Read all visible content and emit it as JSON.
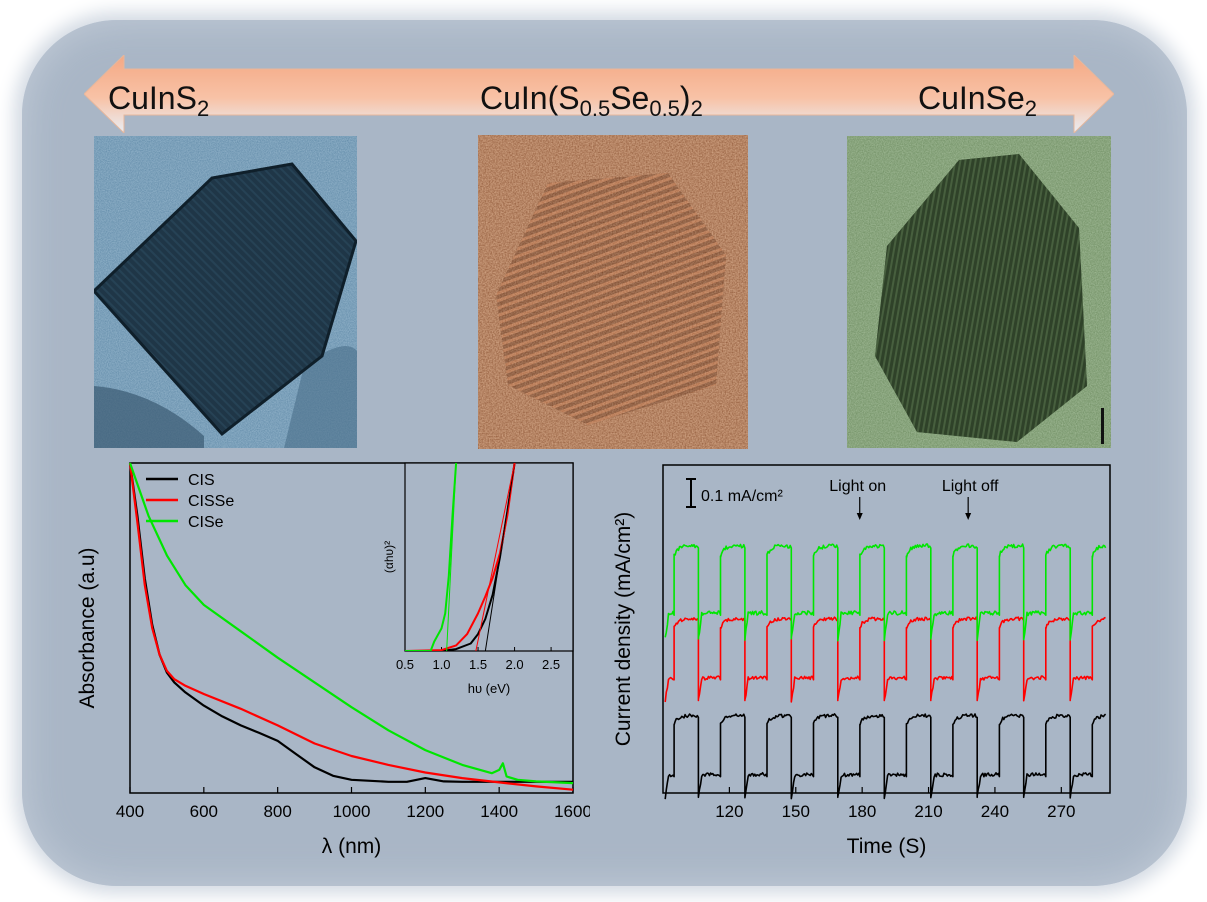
{
  "labels": {
    "cis": {
      "base": "CuInS",
      "sub": "2"
    },
    "cisse": {
      "pre": "CuIn(S",
      "sub1": "0.5",
      "mid": "Se",
      "sub2": "0.5",
      "post": ")",
      "sub3": "2"
    },
    "cise": {
      "base": "CuInSe",
      "sub": "2"
    }
  },
  "colors": {
    "arrow_top": "#f4a884",
    "arrow_bottom": "#e9eef5",
    "cis": "#000000",
    "cisse": "#ff0000",
    "cise": "#00e600"
  },
  "chart_data": [
    {
      "type": "line",
      "title": "",
      "xlabel": "λ (nm)",
      "ylabel": "Absorbance (a.u)",
      "xlim": [
        400,
        1600
      ],
      "ylim": [
        0,
        1
      ],
      "xticks": [
        400,
        600,
        800,
        1000,
        1200,
        1400,
        1600
      ],
      "legend": "top-left",
      "series": [
        {
          "name": "CIS",
          "color": "#000000",
          "x": [
            400,
            420,
            440,
            460,
            480,
            500,
            520,
            550,
            600,
            650,
            700,
            750,
            800,
            850,
            900,
            950,
            1000,
            1100,
            1150,
            1200,
            1250,
            1300,
            1400,
            1450,
            1500,
            1600
          ],
          "y": [
            1.0,
            0.84,
            0.65,
            0.51,
            0.42,
            0.365,
            0.335,
            0.305,
            0.265,
            0.232,
            0.205,
            0.182,
            0.158,
            0.118,
            0.078,
            0.052,
            0.04,
            0.034,
            0.034,
            0.045,
            0.035,
            0.034,
            0.034,
            0.034,
            0.034,
            0.034
          ]
        },
        {
          "name": "CISSe",
          "color": "#ff0000",
          "x": [
            400,
            420,
            440,
            460,
            480,
            500,
            520,
            550,
            600,
            700,
            800,
            900,
            1000,
            1100,
            1200,
            1300,
            1400,
            1500,
            1600
          ],
          "y": [
            1.0,
            0.82,
            0.63,
            0.5,
            0.42,
            0.37,
            0.345,
            0.325,
            0.3,
            0.255,
            0.205,
            0.15,
            0.112,
            0.085,
            0.062,
            0.045,
            0.032,
            0.02,
            0.01
          ]
        },
        {
          "name": "CISe",
          "color": "#00e600",
          "x": [
            400,
            450,
            500,
            550,
            600,
            700,
            800,
            900,
            1000,
            1100,
            1200,
            1300,
            1380,
            1400,
            1410,
            1420,
            1450,
            1500,
            1600
          ],
          "y": [
            1.0,
            0.84,
            0.72,
            0.63,
            0.57,
            0.49,
            0.41,
            0.335,
            0.26,
            0.19,
            0.13,
            0.085,
            0.06,
            0.07,
            0.09,
            0.05,
            0.04,
            0.035,
            0.03
          ]
        }
      ]
    },
    {
      "type": "line",
      "title": "",
      "xlabel": "hυ (eV)",
      "ylabel": "(αhυ)²",
      "xlim": [
        0.5,
        2.8
      ],
      "ylim": [
        0,
        1
      ],
      "xticks": [
        0.5,
        1.0,
        1.5,
        2.0,
        2.5
      ],
      "series": [
        {
          "name": "CIS",
          "color": "#000000",
          "x": [
            0.5,
            1.0,
            1.2,
            1.4,
            1.5,
            1.6,
            1.7,
            1.8,
            1.9,
            2.0
          ],
          "y": [
            0.0,
            0.0,
            0.01,
            0.04,
            0.09,
            0.17,
            0.3,
            0.5,
            0.74,
            1.0
          ]
        },
        {
          "name": "CISSe",
          "color": "#ff0000",
          "x": [
            0.5,
            1.0,
            1.2,
            1.35,
            1.5,
            1.6,
            1.7,
            1.8,
            1.9,
            2.0
          ],
          "y": [
            0.0,
            0.005,
            0.03,
            0.09,
            0.2,
            0.29,
            0.39,
            0.52,
            0.72,
            1.0
          ]
        },
        {
          "name": "CISe",
          "color": "#00e600",
          "x": [
            0.5,
            0.85,
            0.9,
            1.0,
            1.05,
            1.1,
            1.15,
            1.2
          ],
          "y": [
            0.0,
            0.0,
            0.05,
            0.12,
            0.2,
            0.4,
            0.72,
            1.0
          ]
        }
      ],
      "fit_lines": [
        {
          "series": "CIS",
          "color": "#000000",
          "x": [
            1.6,
            2.0
          ],
          "y": [
            0.0,
            1.0
          ]
        },
        {
          "series": "CISSe",
          "color": "#ff0000",
          "x": [
            1.47,
            2.0
          ],
          "y": [
            0.0,
            1.0
          ]
        },
        {
          "series": "CISe",
          "color": "#00e600",
          "x": [
            1.07,
            1.2
          ],
          "y": [
            0.0,
            1.0
          ]
        }
      ]
    },
    {
      "type": "line",
      "title": "",
      "xlabel": "Time (S)",
      "ylabel": "Current density (mA/cm²)",
      "xlim": [
        90,
        292
      ],
      "xticks": [
        120,
        150,
        180,
        210,
        240,
        270
      ],
      "scale_bar": "0.1 mA/cm²",
      "annotations": [
        "Light on",
        "Light off"
      ],
      "cycle_period_s": 21,
      "first_on_s": 95,
      "on_duration_s": 11,
      "series": [
        {
          "name": "CIS",
          "color": "#000000",
          "on_level": 0.22,
          "off_level": 0.0
        },
        {
          "name": "CISSe",
          "color": "#ff0000",
          "on_level": 0.58,
          "off_level": 0.36
        },
        {
          "name": "CISe",
          "color": "#00e600",
          "on_level": 0.85,
          "off_level": 0.6
        }
      ]
    }
  ]
}
